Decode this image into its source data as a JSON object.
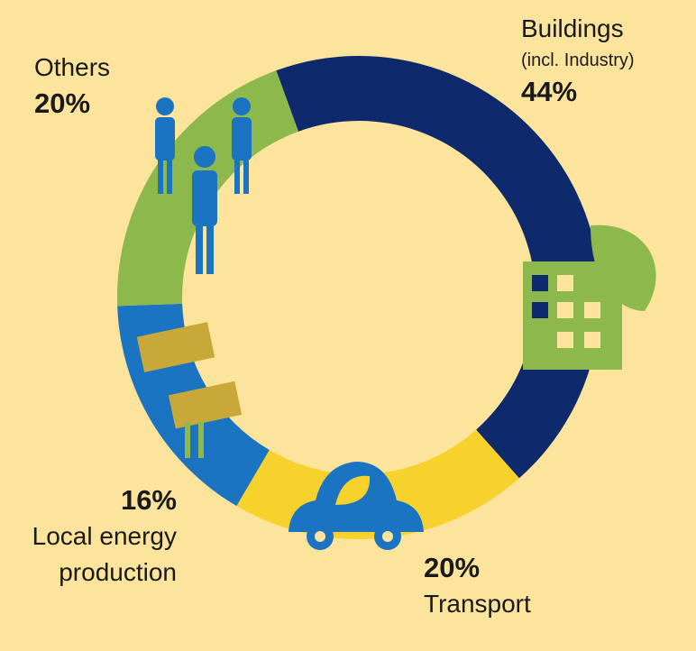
{
  "chart_data": {
    "type": "donut",
    "categories": [
      "Buildings",
      "Transport",
      "Local energy production",
      "Others"
    ],
    "values": [
      44,
      20,
      16,
      20
    ],
    "value_labels": [
      "44%",
      "20%",
      "16%",
      "20%"
    ],
    "colors": [
      "#0e2a6c",
      "#f8d22c",
      "#1b74c2",
      "#8cb84c"
    ],
    "annotations": [
      {
        "text": "(incl. Industry)"
      }
    ]
  }
}
